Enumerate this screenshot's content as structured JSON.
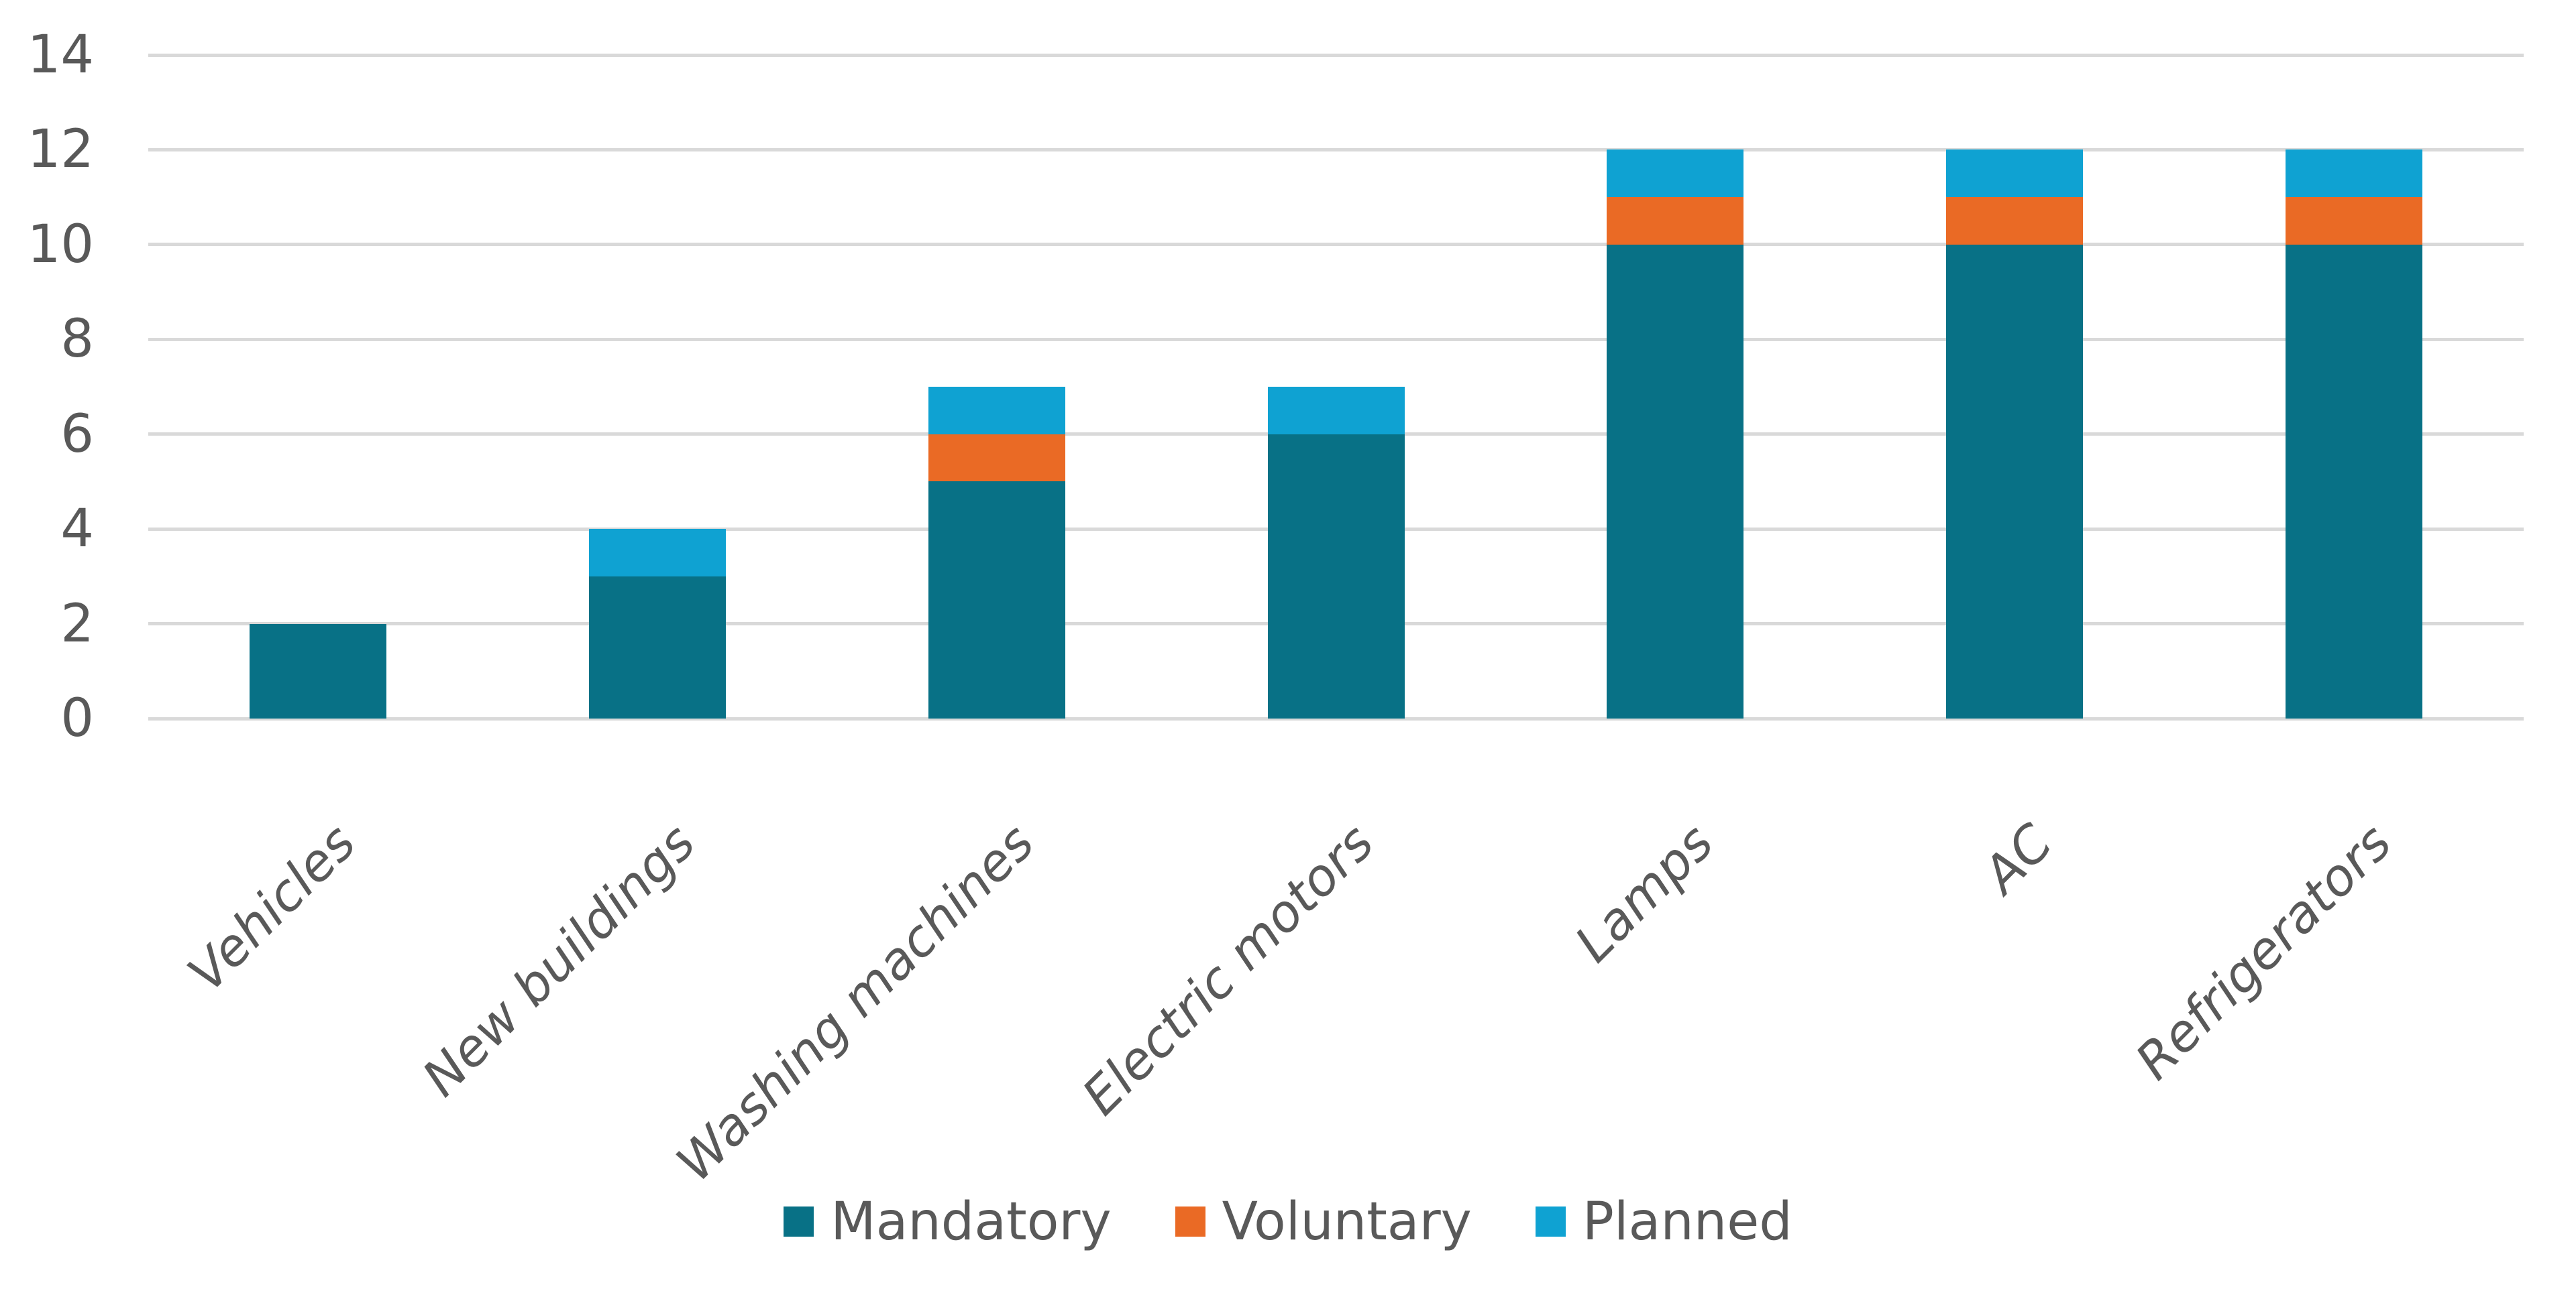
{
  "chart_data": {
    "type": "bar",
    "stacked": true,
    "title": "",
    "xlabel": "",
    "ylabel": "",
    "categories": [
      "Vehicles",
      "New buildings",
      "Washing machines",
      "Electric motors",
      "Lamps",
      "AC",
      "Refrigerators"
    ],
    "series": [
      {
        "name": "Mandatory",
        "color": "#087186",
        "values": [
          2,
          3,
          5,
          6,
          10,
          10,
          10
        ]
      },
      {
        "name": "Voluntary",
        "color": "#EA6A25",
        "values": [
          0,
          0,
          1,
          0,
          1,
          1,
          1
        ]
      },
      {
        "name": "Planned",
        "color": "#0FA2D2",
        "values": [
          0,
          1,
          1,
          1,
          1,
          1,
          1
        ]
      }
    ],
    "totals": [
      2,
      4,
      7,
      7,
      12,
      12,
      12
    ],
    "ylim": [
      0,
      14
    ],
    "ytick_step": 2,
    "yticks": [
      "0",
      "2",
      "4",
      "6",
      "8",
      "10",
      "12",
      "14"
    ],
    "grid": true,
    "legend_position": "bottom",
    "colors": {
      "text": "#595959",
      "gridline": "#D9D9D9",
      "background": "#FFFFFF"
    }
  }
}
